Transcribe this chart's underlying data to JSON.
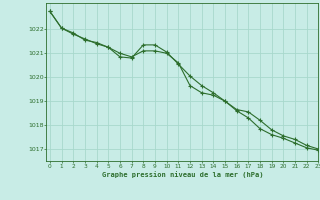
{
  "title": "Graphe pression niveau de la mer (hPa)",
  "background_color": "#c8ece6",
  "grid_color": "#a8d8cc",
  "line_color": "#2d6e2d",
  "marker_color": "#2d6e2d",
  "xlim": [
    -0.3,
    23
  ],
  "ylim": [
    1016.5,
    1023.1
  ],
  "xticks": [
    0,
    1,
    2,
    3,
    4,
    5,
    6,
    7,
    8,
    9,
    10,
    11,
    12,
    13,
    14,
    15,
    16,
    17,
    18,
    19,
    20,
    21,
    22,
    23
  ],
  "yticks": [
    1017,
    1018,
    1019,
    1020,
    1021,
    1022
  ],
  "series1_x": [
    0,
    1,
    2,
    3,
    4,
    5,
    6,
    7,
    8,
    9,
    10,
    11,
    12,
    13,
    14,
    15,
    16,
    17,
    18,
    19,
    20,
    21,
    22,
    23
  ],
  "series1_y": [
    1022.75,
    1022.05,
    1021.8,
    1021.6,
    1021.4,
    1021.25,
    1020.85,
    1020.8,
    1021.35,
    1021.35,
    1021.05,
    1020.55,
    1020.05,
    1019.65,
    1019.35,
    1019.0,
    1018.65,
    1018.55,
    1018.2,
    1017.8,
    1017.55,
    1017.4,
    1017.15,
    1017.0
  ],
  "series2_x": [
    0,
    1,
    2,
    3,
    4,
    5,
    6,
    7,
    8,
    9,
    10,
    11,
    12,
    13,
    14,
    15,
    16,
    17,
    18,
    19,
    20,
    21,
    22,
    23
  ],
  "series2_y": [
    1022.75,
    1022.05,
    1021.85,
    1021.55,
    1021.45,
    1021.25,
    1021.0,
    1020.85,
    1021.1,
    1021.1,
    1021.0,
    1020.6,
    1019.65,
    1019.35,
    1019.25,
    1019.0,
    1018.6,
    1018.3,
    1017.85,
    1017.6,
    1017.45,
    1017.25,
    1017.05,
    1016.95
  ]
}
